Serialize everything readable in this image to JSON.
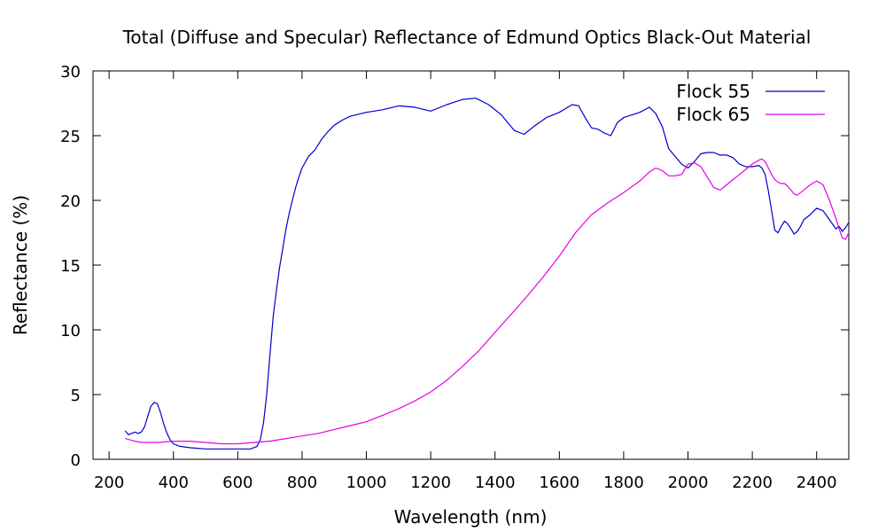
{
  "chart_data": {
    "type": "line",
    "title": "Total (Diffuse and Specular) Reflectance of Edmund Optics Black-Out Material",
    "xlabel": "Wavelength (nm)",
    "ylabel": "Reflectance (%)",
    "xlim": [
      150,
      2500
    ],
    "ylim": [
      0,
      30
    ],
    "xticks": [
      200,
      400,
      600,
      800,
      1000,
      1200,
      1400,
      1600,
      1800,
      2000,
      2200,
      2400
    ],
    "yticks": [
      0,
      5,
      10,
      15,
      20,
      25,
      30
    ],
    "grid": false,
    "legend_position": "top-right",
    "series": [
      {
        "name": "Flock 55",
        "color": "#0000c8",
        "x": [
          250,
          260,
          270,
          280,
          290,
          300,
          310,
          320,
          330,
          340,
          350,
          360,
          370,
          380,
          390,
          400,
          420,
          450,
          500,
          550,
          600,
          640,
          660,
          670,
          680,
          690,
          700,
          710,
          720,
          730,
          740,
          750,
          760,
          770,
          780,
          790,
          800,
          820,
          840,
          860,
          880,
          900,
          925,
          950,
          1000,
          1050,
          1100,
          1150,
          1200,
          1250,
          1300,
          1340,
          1380,
          1420,
          1460,
          1490,
          1520,
          1560,
          1600,
          1640,
          1660,
          1680,
          1700,
          1720,
          1740,
          1760,
          1780,
          1800,
          1850,
          1880,
          1900,
          1920,
          1940,
          1960,
          1980,
          2000,
          2020,
          2040,
          2060,
          2080,
          2100,
          2120,
          2140,
          2160,
          2180,
          2200,
          2220,
          2230,
          2240,
          2250,
          2260,
          2270,
          2280,
          2290,
          2300,
          2310,
          2320,
          2330,
          2340,
          2350,
          2360,
          2380,
          2400,
          2420,
          2440,
          2460,
          2470,
          2480,
          2490,
          2500
        ],
        "values": [
          2.2,
          1.9,
          2.0,
          2.1,
          2.0,
          2.1,
          2.5,
          3.3,
          4.1,
          4.4,
          4.3,
          3.6,
          2.7,
          2.0,
          1.5,
          1.2,
          1.0,
          0.9,
          0.8,
          0.8,
          0.8,
          0.8,
          1.0,
          1.5,
          2.8,
          5.0,
          8.0,
          11.0,
          13.0,
          14.8,
          16.3,
          17.8,
          19.0,
          20.0,
          21.0,
          21.8,
          22.5,
          23.4,
          23.9,
          24.7,
          25.3,
          25.8,
          26.2,
          26.5,
          26.8,
          27.0,
          27.3,
          27.2,
          26.9,
          27.4,
          27.8,
          27.9,
          27.4,
          26.6,
          25.4,
          25.1,
          25.7,
          26.4,
          26.8,
          27.4,
          27.3,
          26.4,
          25.6,
          25.5,
          25.2,
          25.0,
          26.0,
          26.4,
          26.8,
          27.2,
          26.7,
          25.7,
          24.0,
          23.4,
          22.8,
          22.5,
          23.0,
          23.6,
          23.7,
          23.7,
          23.5,
          23.5,
          23.3,
          22.8,
          22.6,
          22.6,
          22.7,
          22.5,
          22.0,
          20.7,
          19.2,
          17.7,
          17.5,
          18.0,
          18.4,
          18.2,
          17.8,
          17.4,
          17.6,
          18.0,
          18.5,
          18.9,
          19.4,
          19.2,
          18.5,
          17.8,
          18.0,
          17.6,
          17.9,
          18.3
        ]
      },
      {
        "name": "Flock 65",
        "color": "#e600e6",
        "x": [
          250,
          280,
          300,
          350,
          400,
          450,
          500,
          550,
          600,
          650,
          700,
          750,
          800,
          850,
          900,
          950,
          1000,
          1050,
          1100,
          1150,
          1200,
          1250,
          1300,
          1350,
          1400,
          1450,
          1500,
          1550,
          1600,
          1650,
          1700,
          1750,
          1800,
          1850,
          1880,
          1900,
          1920,
          1940,
          1960,
          1980,
          2000,
          2020,
          2040,
          2060,
          2080,
          2100,
          2120,
          2140,
          2160,
          2180,
          2200,
          2220,
          2230,
          2240,
          2250,
          2260,
          2270,
          2280,
          2290,
          2300,
          2310,
          2320,
          2330,
          2340,
          2350,
          2360,
          2380,
          2400,
          2420,
          2440,
          2460,
          2470,
          2480,
          2490,
          2500
        ],
        "values": [
          1.6,
          1.4,
          1.3,
          1.3,
          1.4,
          1.4,
          1.3,
          1.2,
          1.2,
          1.3,
          1.4,
          1.6,
          1.8,
          2.0,
          2.3,
          2.6,
          2.9,
          3.4,
          3.9,
          4.5,
          5.2,
          6.1,
          7.2,
          8.4,
          9.8,
          11.2,
          12.6,
          14.1,
          15.7,
          17.5,
          18.9,
          19.8,
          20.6,
          21.5,
          22.2,
          22.5,
          22.3,
          21.9,
          21.9,
          22.0,
          22.8,
          22.9,
          22.6,
          21.8,
          21.0,
          20.8,
          21.2,
          21.6,
          22.0,
          22.4,
          22.8,
          23.1,
          23.2,
          23.0,
          22.5,
          22.0,
          21.6,
          21.4,
          21.3,
          21.3,
          21.1,
          20.8,
          20.5,
          20.4,
          20.6,
          20.8,
          21.2,
          21.5,
          21.2,
          20.0,
          18.6,
          17.8,
          17.1,
          17.0,
          17.5
        ]
      }
    ]
  }
}
